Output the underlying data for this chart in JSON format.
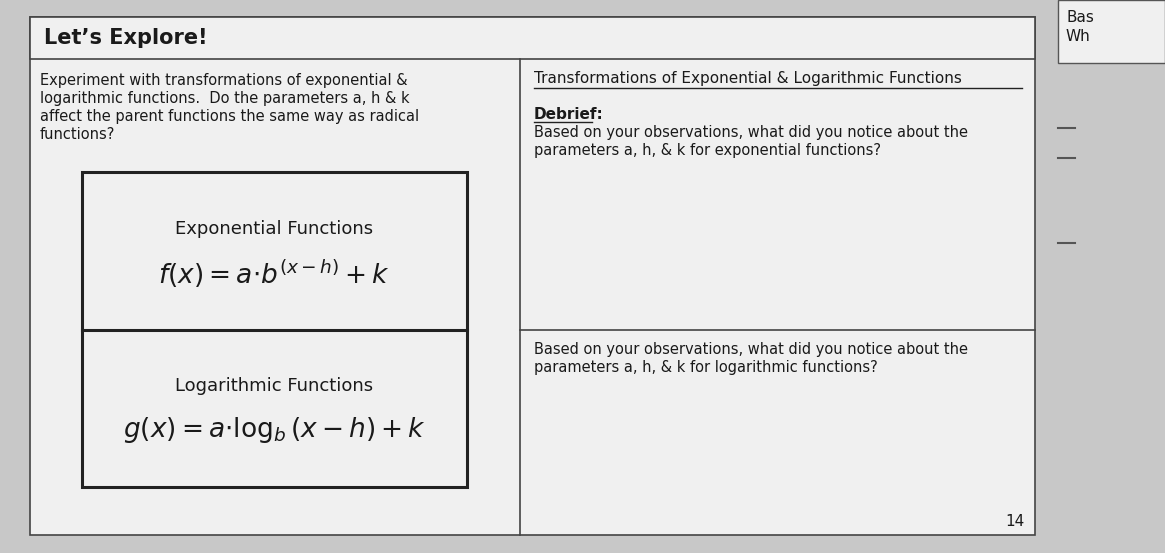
{
  "background_color": "#c8c8c8",
  "main_bg": "#f0f0f0",
  "text_color": "#1a1a1a",
  "header_title": "Let’s Explore!",
  "left_col_text_line1": "Experiment with transformations of exponential &",
  "left_col_text_line2": "logarithmic functions.  Do the parameters a, h & k",
  "left_col_text_line3": "affect the parent functions the same way as radical",
  "left_col_text_line4": "functions?",
  "box1_title": "Exponential Functions",
  "box1_formula": "$f(x)=a{\\cdot}b^{(x-h)} + k$",
  "box2_title": "Logarithmic Functions",
  "box2_formula": "$g(x)=a{\\cdot}\\log_b(x-h) + k$",
  "right_col_title": "Transformations of Exponential & Logarithmic Functions",
  "debrief_label": "Debrief:",
  "debrief_q1_line1": "Based on your observations, what did you notice about the",
  "debrief_q1_line2": "parameters a, h, & k for exponential functions?",
  "debrief_q2_line1": "Based on your observations, what did you notice about the",
  "debrief_q2_line2": "parameters a, h, & k for logarithmic functions?",
  "top_right_text1": "Bas",
  "top_right_text2": "Wh",
  "page_number": "14"
}
